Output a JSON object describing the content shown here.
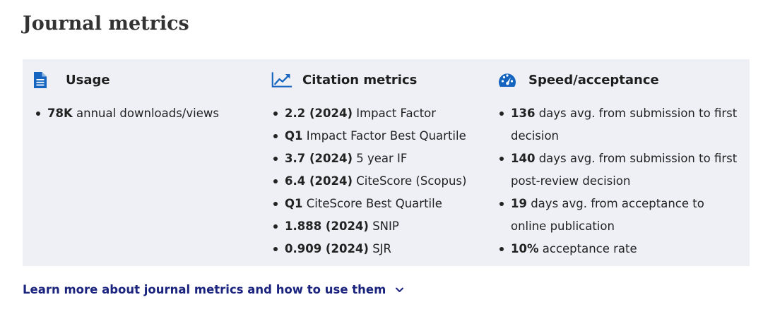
{
  "page_title": "Journal metrics",
  "colors": {
    "panel_bg": "#eef0f6",
    "icon_blue": "#1565c0",
    "link_blue": "#1a237e"
  },
  "usage": {
    "icon": "document-icon",
    "title": "Usage",
    "items": [
      {
        "value": "78K",
        "label": " annual downloads/views"
      }
    ]
  },
  "citation": {
    "icon": "line-chart-icon",
    "title": "Citation metrics",
    "items": [
      {
        "value": "2.2 (2024)",
        "label": " Impact Factor"
      },
      {
        "value": "Q1",
        "label": " Impact Factor Best Quartile"
      },
      {
        "value": "3.7 (2024)",
        "label": " 5 year IF"
      },
      {
        "value": "6.4 (2024)",
        "label": " CiteScore (Scopus)"
      },
      {
        "value": "Q1",
        "label": " CiteScore Best Quartile"
      },
      {
        "value": "1.888 (2024)",
        "label": " SNIP"
      },
      {
        "value": "0.909 (2024)",
        "label": " SJR"
      }
    ]
  },
  "speed": {
    "icon": "speedometer-icon",
    "title": "Speed/acceptance",
    "items": [
      {
        "value": "136",
        "label": " days avg. from submission to first decision"
      },
      {
        "value": "140",
        "label": " days avg. from submission to first post-review decision"
      },
      {
        "value": "19",
        "label": " days avg. from acceptance to online publication"
      },
      {
        "value": "10%",
        "label": " acceptance rate"
      }
    ]
  },
  "learn_more": {
    "label": "Learn more about journal metrics and how to use them",
    "icon": "chevron-down-icon"
  }
}
